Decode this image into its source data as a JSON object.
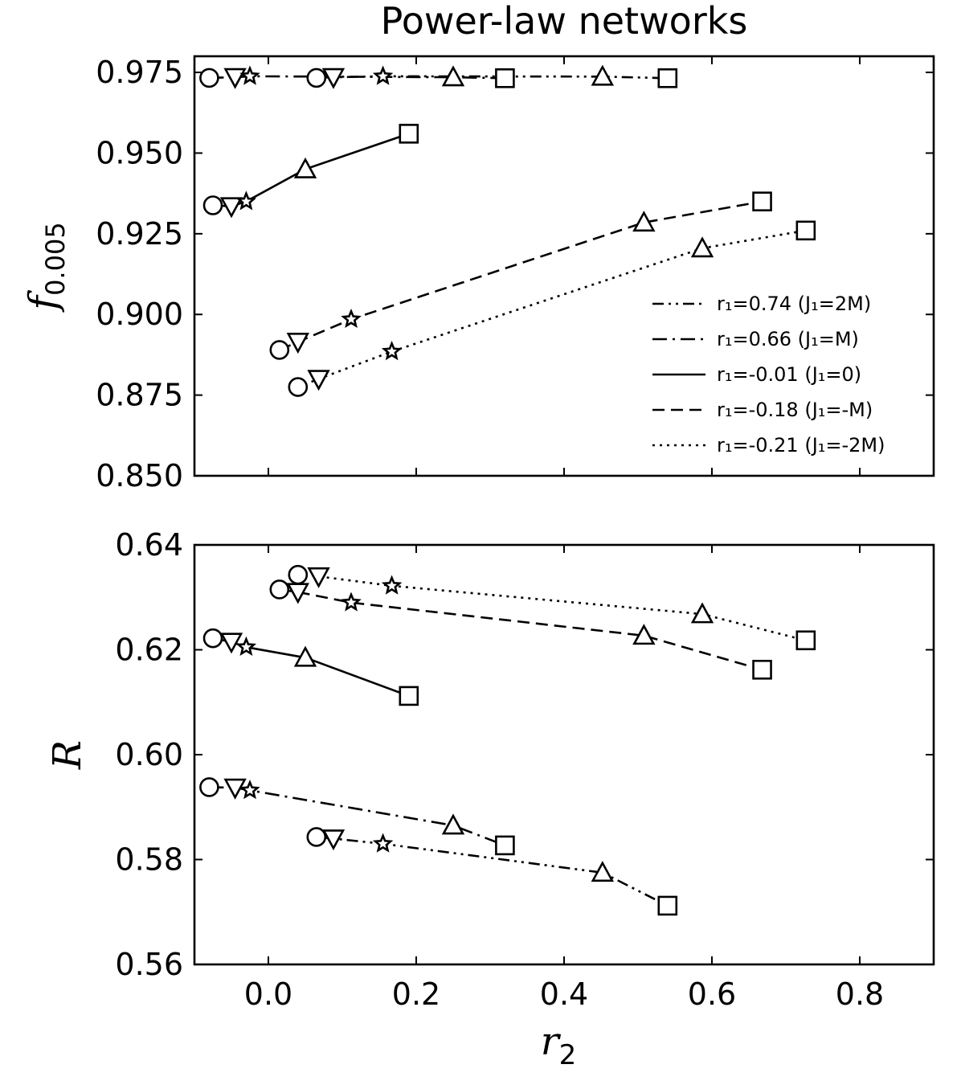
{
  "chart_data": [
    {
      "type": "line",
      "panel": "top",
      "title": "Power-law networks",
      "xlabel": "",
      "ylabel": "f",
      "ylabel_sub": "0.005",
      "xlim": [
        -0.1,
        0.9
      ],
      "ylim": [
        0.85,
        0.98
      ],
      "yticks": [
        "0.850",
        "0.875",
        "0.900",
        "0.925",
        "0.950",
        "0.975"
      ],
      "ytick_values": [
        0.85,
        0.875,
        0.9,
        0.925,
        0.95,
        0.975
      ],
      "xtick_values": [
        0.0,
        0.2,
        0.4,
        0.6,
        0.8
      ],
      "legend_position": "right",
      "marker_order": [
        "circle",
        "triangle-down",
        "star",
        "triangle-up",
        "square"
      ],
      "series": [
        {
          "name": "r₁=0.74 (J₁=2M)",
          "style": "dashdotdot",
          "x": [
            0.065,
            0.088,
            0.155,
            0.452,
            0.54
          ],
          "y": [
            0.9733,
            0.9735,
            0.9738,
            0.9737,
            0.9732
          ]
        },
        {
          "name": "r₁=0.66 (J₁=M)",
          "style": "dashdot",
          "x": [
            -0.08,
            -0.045,
            -0.025,
            0.25,
            0.32
          ],
          "y": [
            0.9733,
            0.9735,
            0.9738,
            0.9735,
            0.9732
          ]
        },
        {
          "name": "r₁=-0.01 (J₁=0)",
          "style": "solid",
          "x": [
            -0.075,
            -0.05,
            -0.03,
            0.05,
            0.19
          ],
          "y": [
            0.9338,
            0.9335,
            0.935,
            0.945,
            0.956
          ]
        },
        {
          "name": "r₁=-0.18 (J₁=-M)",
          "style": "dashed",
          "x": [
            0.015,
            0.04,
            0.112,
            0.508,
            0.668
          ],
          "y": [
            0.889,
            0.8915,
            0.8985,
            0.9285,
            0.935
          ]
        },
        {
          "name": "r₁=-0.21 (J₁=-2M)",
          "style": "dotted",
          "x": [
            0.04,
            0.068,
            0.167,
            0.587,
            0.727
          ],
          "y": [
            0.8775,
            0.88,
            0.8885,
            0.9205,
            0.926
          ]
        }
      ]
    },
    {
      "type": "line",
      "panel": "bottom",
      "title": "",
      "xlabel": "r",
      "xlabel_sub": "2",
      "ylabel": "R",
      "xlim": [
        -0.1,
        0.9
      ],
      "ylim": [
        0.56,
        0.64
      ],
      "yticks": [
        "0.56",
        "0.58",
        "0.60",
        "0.62",
        "0.64"
      ],
      "ytick_values": [
        0.56,
        0.58,
        0.6,
        0.62,
        0.64
      ],
      "xticks": [
        "0.0",
        "0.2",
        "0.4",
        "0.6",
        "0.8"
      ],
      "xtick_values": [
        0.0,
        0.2,
        0.4,
        0.6,
        0.8
      ],
      "marker_order": [
        "circle",
        "triangle-down",
        "star",
        "triangle-up",
        "square"
      ],
      "series": [
        {
          "name": "r₁=0.74 (J₁=2M)",
          "style": "dashdotdot",
          "x": [
            0.065,
            0.088,
            0.155,
            0.452,
            0.54
          ],
          "y": [
            0.5843,
            0.584,
            0.583,
            0.5775,
            0.5712
          ]
        },
        {
          "name": "r₁=0.66 (J₁=M)",
          "style": "dashdot",
          "x": [
            -0.08,
            -0.045,
            -0.025,
            0.25,
            0.32
          ],
          "y": [
            0.5938,
            0.5937,
            0.5932,
            0.5865,
            0.5827
          ]
        },
        {
          "name": "r₁=-0.01 (J₁=0)",
          "style": "solid",
          "x": [
            -0.075,
            -0.05,
            -0.03,
            0.05,
            0.19
          ],
          "y": [
            0.6222,
            0.6215,
            0.6205,
            0.6185,
            0.6112
          ]
        },
        {
          "name": "r₁=-0.18 (J₁=-M)",
          "style": "dashed",
          "x": [
            0.015,
            0.04,
            0.112,
            0.508,
            0.668
          ],
          "y": [
            0.6315,
            0.631,
            0.629,
            0.6227,
            0.6162
          ]
        },
        {
          "name": "r₁=-0.21 (J₁=-2M)",
          "style": "dotted",
          "x": [
            0.04,
            0.068,
            0.167,
            0.587,
            0.727
          ],
          "y": [
            0.6343,
            0.634,
            0.6322,
            0.6268,
            0.6218
          ]
        }
      ]
    }
  ]
}
